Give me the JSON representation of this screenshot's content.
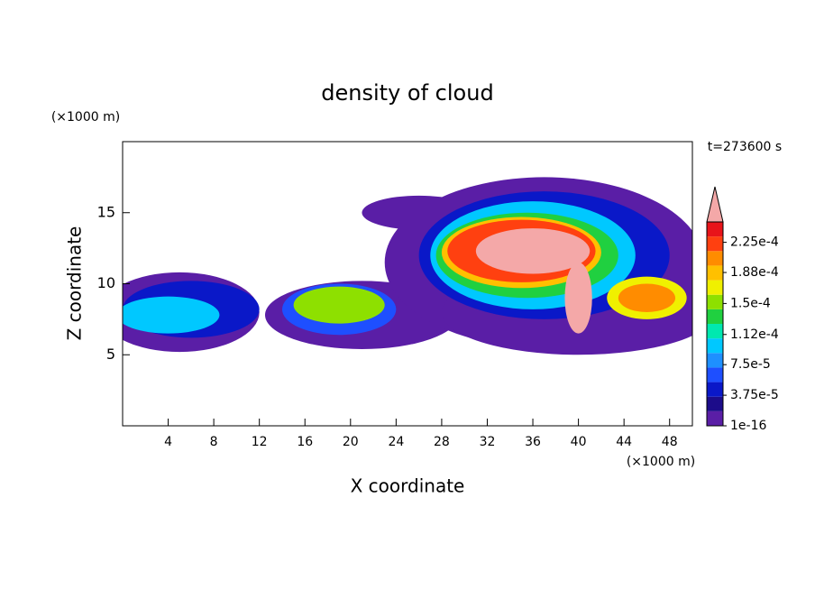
{
  "chart_data": {
    "type": "contour",
    "title": "density of cloud",
    "xlabel": "X coordinate",
    "ylabel": "Z coordinate",
    "x_unit": "(×1000 m)",
    "y_unit": "(×1000 m)",
    "annotation": "t=273600 s",
    "xlim": [
      0,
      50
    ],
    "xticks": [
      4,
      8,
      12,
      16,
      20,
      24,
      28,
      32,
      36,
      40,
      44,
      48
    ],
    "ylim": [
      0,
      20
    ],
    "yticks": [
      5,
      10,
      15
    ],
    "colorbar": {
      "lim": [
        0,
        0.00025
      ],
      "ticks": [
        1e-16,
        {
          "value": 3.75e-05,
          "label": "3.75e-5"
        },
        {
          "value": 7.5e-05,
          "label": "7.5e-5"
        },
        {
          "value": 0.000112,
          "label": "1.12e-4"
        },
        {
          "value": 0.00015,
          "label": "1.5e-4"
        },
        {
          "value": 0.000188,
          "label": "1.88e-4"
        },
        {
          "value": 0.000225,
          "label": "2.25e-4"
        }
      ],
      "colors": [
        "#5a1ea6",
        "#1c0c8a",
        "#0a18c8",
        "#1e4fff",
        "#1e90ff",
        "#00c8ff",
        "#00e8b0",
        "#20d040",
        "#8ee000",
        "#f0f000",
        "#ffc000",
        "#ff8c00",
        "#ff4010",
        "#e8141a"
      ],
      "extend_color": "#f4a8a8"
    }
  }
}
